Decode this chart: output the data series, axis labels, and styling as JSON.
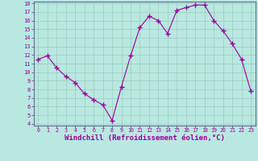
{
  "x": [
    0,
    1,
    2,
    3,
    4,
    5,
    6,
    7,
    8,
    9,
    10,
    11,
    12,
    13,
    14,
    15,
    16,
    17,
    18,
    19,
    20,
    21,
    22,
    23
  ],
  "y": [
    11.5,
    11.9,
    10.5,
    9.5,
    8.8,
    7.5,
    6.8,
    6.2,
    4.4,
    8.3,
    11.9,
    15.2,
    16.5,
    16.0,
    14.5,
    17.2,
    17.5,
    17.8,
    17.8,
    16.0,
    14.8,
    13.3,
    11.5,
    7.8
  ],
  "line_color": "#990099",
  "marker": "+",
  "marker_size": 4,
  "marker_color": "#990099",
  "bg_color": "#b8e8e0",
  "grid_color": "#99ccbb",
  "xlabel": "Windchill (Refroidissement éolien,°C)",
  "xlabel_color": "#990099",
  "xlabel_fontsize": 6.5,
  "tick_color": "#990099",
  "ylim": [
    4,
    18
  ],
  "xlim": [
    -0.5,
    23.5
  ],
  "yticks": [
    4,
    5,
    6,
    7,
    8,
    9,
    10,
    11,
    12,
    13,
    14,
    15,
    16,
    17,
    18
  ],
  "xticks": [
    0,
    1,
    2,
    3,
    4,
    5,
    6,
    7,
    8,
    9,
    10,
    11,
    12,
    13,
    14,
    15,
    16,
    17,
    18,
    19,
    20,
    21,
    22,
    23
  ],
  "border_color": "#990099",
  "spine_color": "#666699"
}
